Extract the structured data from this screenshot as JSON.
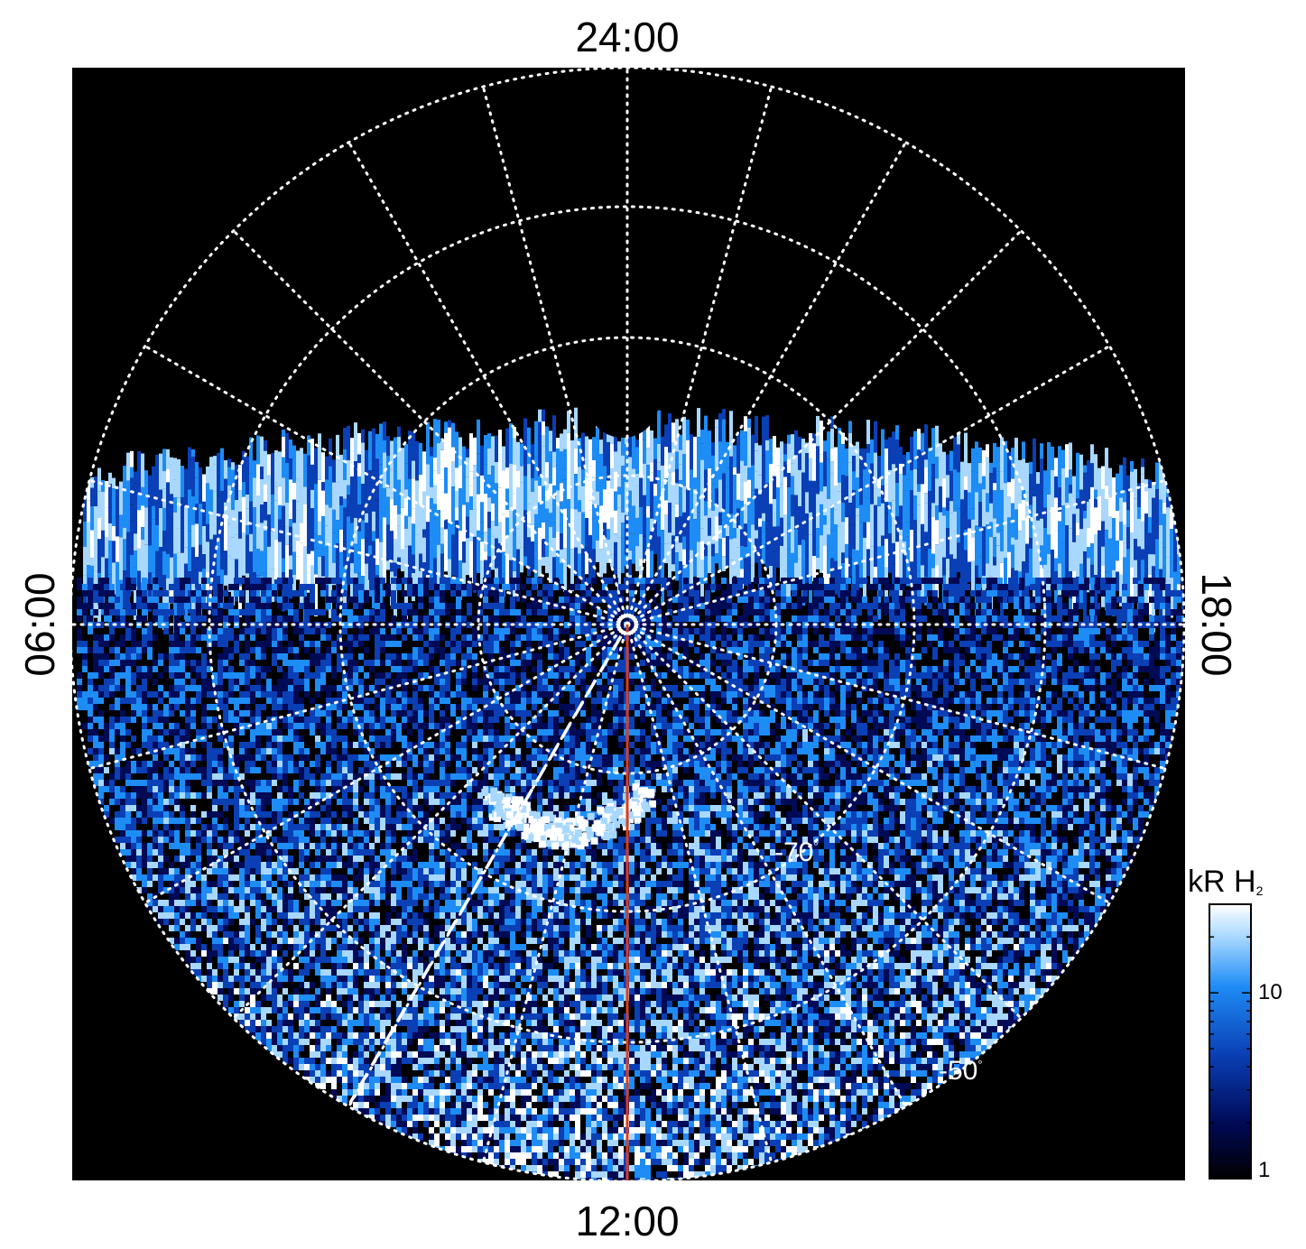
{
  "figure": {
    "local_time_labels": {
      "top": "24:00",
      "bottom": "12:00",
      "left": "06:00",
      "right": "18:00"
    },
    "latitude_labels": [
      {
        "value": "-70",
        "unit": "°"
      },
      {
        "value": "-50",
        "unit": "°"
      }
    ],
    "colorbar": {
      "title_main": "kR H",
      "title_sub": "2",
      "tick_labels": [
        "10",
        "1"
      ],
      "colors": [
        "#000000",
        "#000a55",
        "#0a3fb5",
        "#1e8cf5",
        "#a8d8ff",
        "#ffffff"
      ],
      "scale": "log"
    },
    "colors": {
      "background": "#000000",
      "grid": "#ffffff",
      "meridian_line": "#e03b1e",
      "dashed_line": "#ffffff"
    }
  }
}
